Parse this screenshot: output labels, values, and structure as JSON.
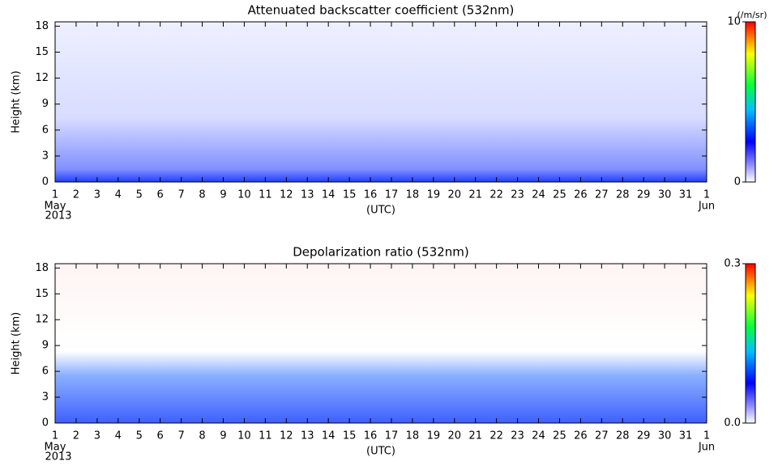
{
  "chart_data": [
    {
      "type": "heatmap",
      "title": "Attenuated backscatter coefficient (532nm)",
      "y_label": "Height (km)",
      "x_label": "(UTC)",
      "start_month": "May",
      "year": "2013",
      "end_month": "Jun",
      "xlim": [
        0,
        31
      ],
      "xticks": [
        {
          "value": 0,
          "label": "1"
        },
        {
          "value": 1,
          "label": "2"
        },
        {
          "value": 2,
          "label": "3"
        },
        {
          "value": 3,
          "label": "4"
        },
        {
          "value": 4,
          "label": "5"
        },
        {
          "value": 5,
          "label": "6"
        },
        {
          "value": 6,
          "label": "7"
        },
        {
          "value": 7,
          "label": "8"
        },
        {
          "value": 8,
          "label": "9"
        },
        {
          "value": 9,
          "label": "10"
        },
        {
          "value": 10,
          "label": "11"
        },
        {
          "value": 11,
          "label": "12"
        },
        {
          "value": 12,
          "label": "13"
        },
        {
          "value": 13,
          "label": "14"
        },
        {
          "value": 14,
          "label": "15"
        },
        {
          "value": 15,
          "label": "16"
        },
        {
          "value": 16,
          "label": "17"
        },
        {
          "value": 17,
          "label": "18"
        },
        {
          "value": 18,
          "label": "19"
        },
        {
          "value": 19,
          "label": "20"
        },
        {
          "value": 20,
          "label": "21"
        },
        {
          "value": 21,
          "label": "22"
        },
        {
          "value": 22,
          "label": "23"
        },
        {
          "value": 23,
          "label": "24"
        },
        {
          "value": 24,
          "label": "25"
        },
        {
          "value": 25,
          "label": "26"
        },
        {
          "value": 26,
          "label": "27"
        },
        {
          "value": 27,
          "label": "28"
        },
        {
          "value": 28,
          "label": "29"
        },
        {
          "value": 29,
          "label": "30"
        },
        {
          "value": 30,
          "label": "31"
        },
        {
          "value": 31,
          "label": "1"
        }
      ],
      "ylim": [
        0,
        18.5
      ],
      "yticks": [
        0,
        3,
        6,
        9,
        12,
        15,
        18
      ],
      "colorbar": {
        "label": "(/m/sr)",
        "lim": [
          0,
          10
        ],
        "ticks": [
          0,
          10
        ]
      }
    },
    {
      "type": "heatmap",
      "title": "Depolarization ratio (532nm)",
      "y_label": "Height (km)",
      "x_label": "(UTC)",
      "start_month": "May",
      "year": "2013",
      "end_month": "Jun",
      "xlim": [
        0,
        31
      ],
      "xticks": [
        {
          "value": 0,
          "label": "1"
        },
        {
          "value": 1,
          "label": "2"
        },
        {
          "value": 2,
          "label": "3"
        },
        {
          "value": 3,
          "label": "4"
        },
        {
          "value": 4,
          "label": "5"
        },
        {
          "value": 5,
          "label": "6"
        },
        {
          "value": 6,
          "label": "7"
        },
        {
          "value": 7,
          "label": "8"
        },
        {
          "value": 8,
          "label": "9"
        },
        {
          "value": 9,
          "label": "10"
        },
        {
          "value": 10,
          "label": "11"
        },
        {
          "value": 11,
          "label": "12"
        },
        {
          "value": 12,
          "label": "13"
        },
        {
          "value": 13,
          "label": "14"
        },
        {
          "value": 14,
          "label": "15"
        },
        {
          "value": 15,
          "label": "16"
        },
        {
          "value": 16,
          "label": "17"
        },
        {
          "value": 17,
          "label": "18"
        },
        {
          "value": 18,
          "label": "19"
        },
        {
          "value": 19,
          "label": "20"
        },
        {
          "value": 20,
          "label": "21"
        },
        {
          "value": 21,
          "label": "22"
        },
        {
          "value": 22,
          "label": "23"
        },
        {
          "value": 23,
          "label": "24"
        },
        {
          "value": 24,
          "label": "25"
        },
        {
          "value": 25,
          "label": "26"
        },
        {
          "value": 26,
          "label": "27"
        },
        {
          "value": 27,
          "label": "28"
        },
        {
          "value": 28,
          "label": "29"
        },
        {
          "value": 29,
          "label": "30"
        },
        {
          "value": 30,
          "label": "31"
        },
        {
          "value": 31,
          "label": "1"
        }
      ],
      "ylim": [
        0,
        18.5
      ],
      "yticks": [
        0,
        3,
        6,
        9,
        12,
        15,
        18
      ],
      "colorbar": {
        "lim": [
          0,
          0.3
        ],
        "ticks": [
          {
            "value": 0,
            "label": "0.0"
          },
          0.3
        ]
      }
    }
  ]
}
